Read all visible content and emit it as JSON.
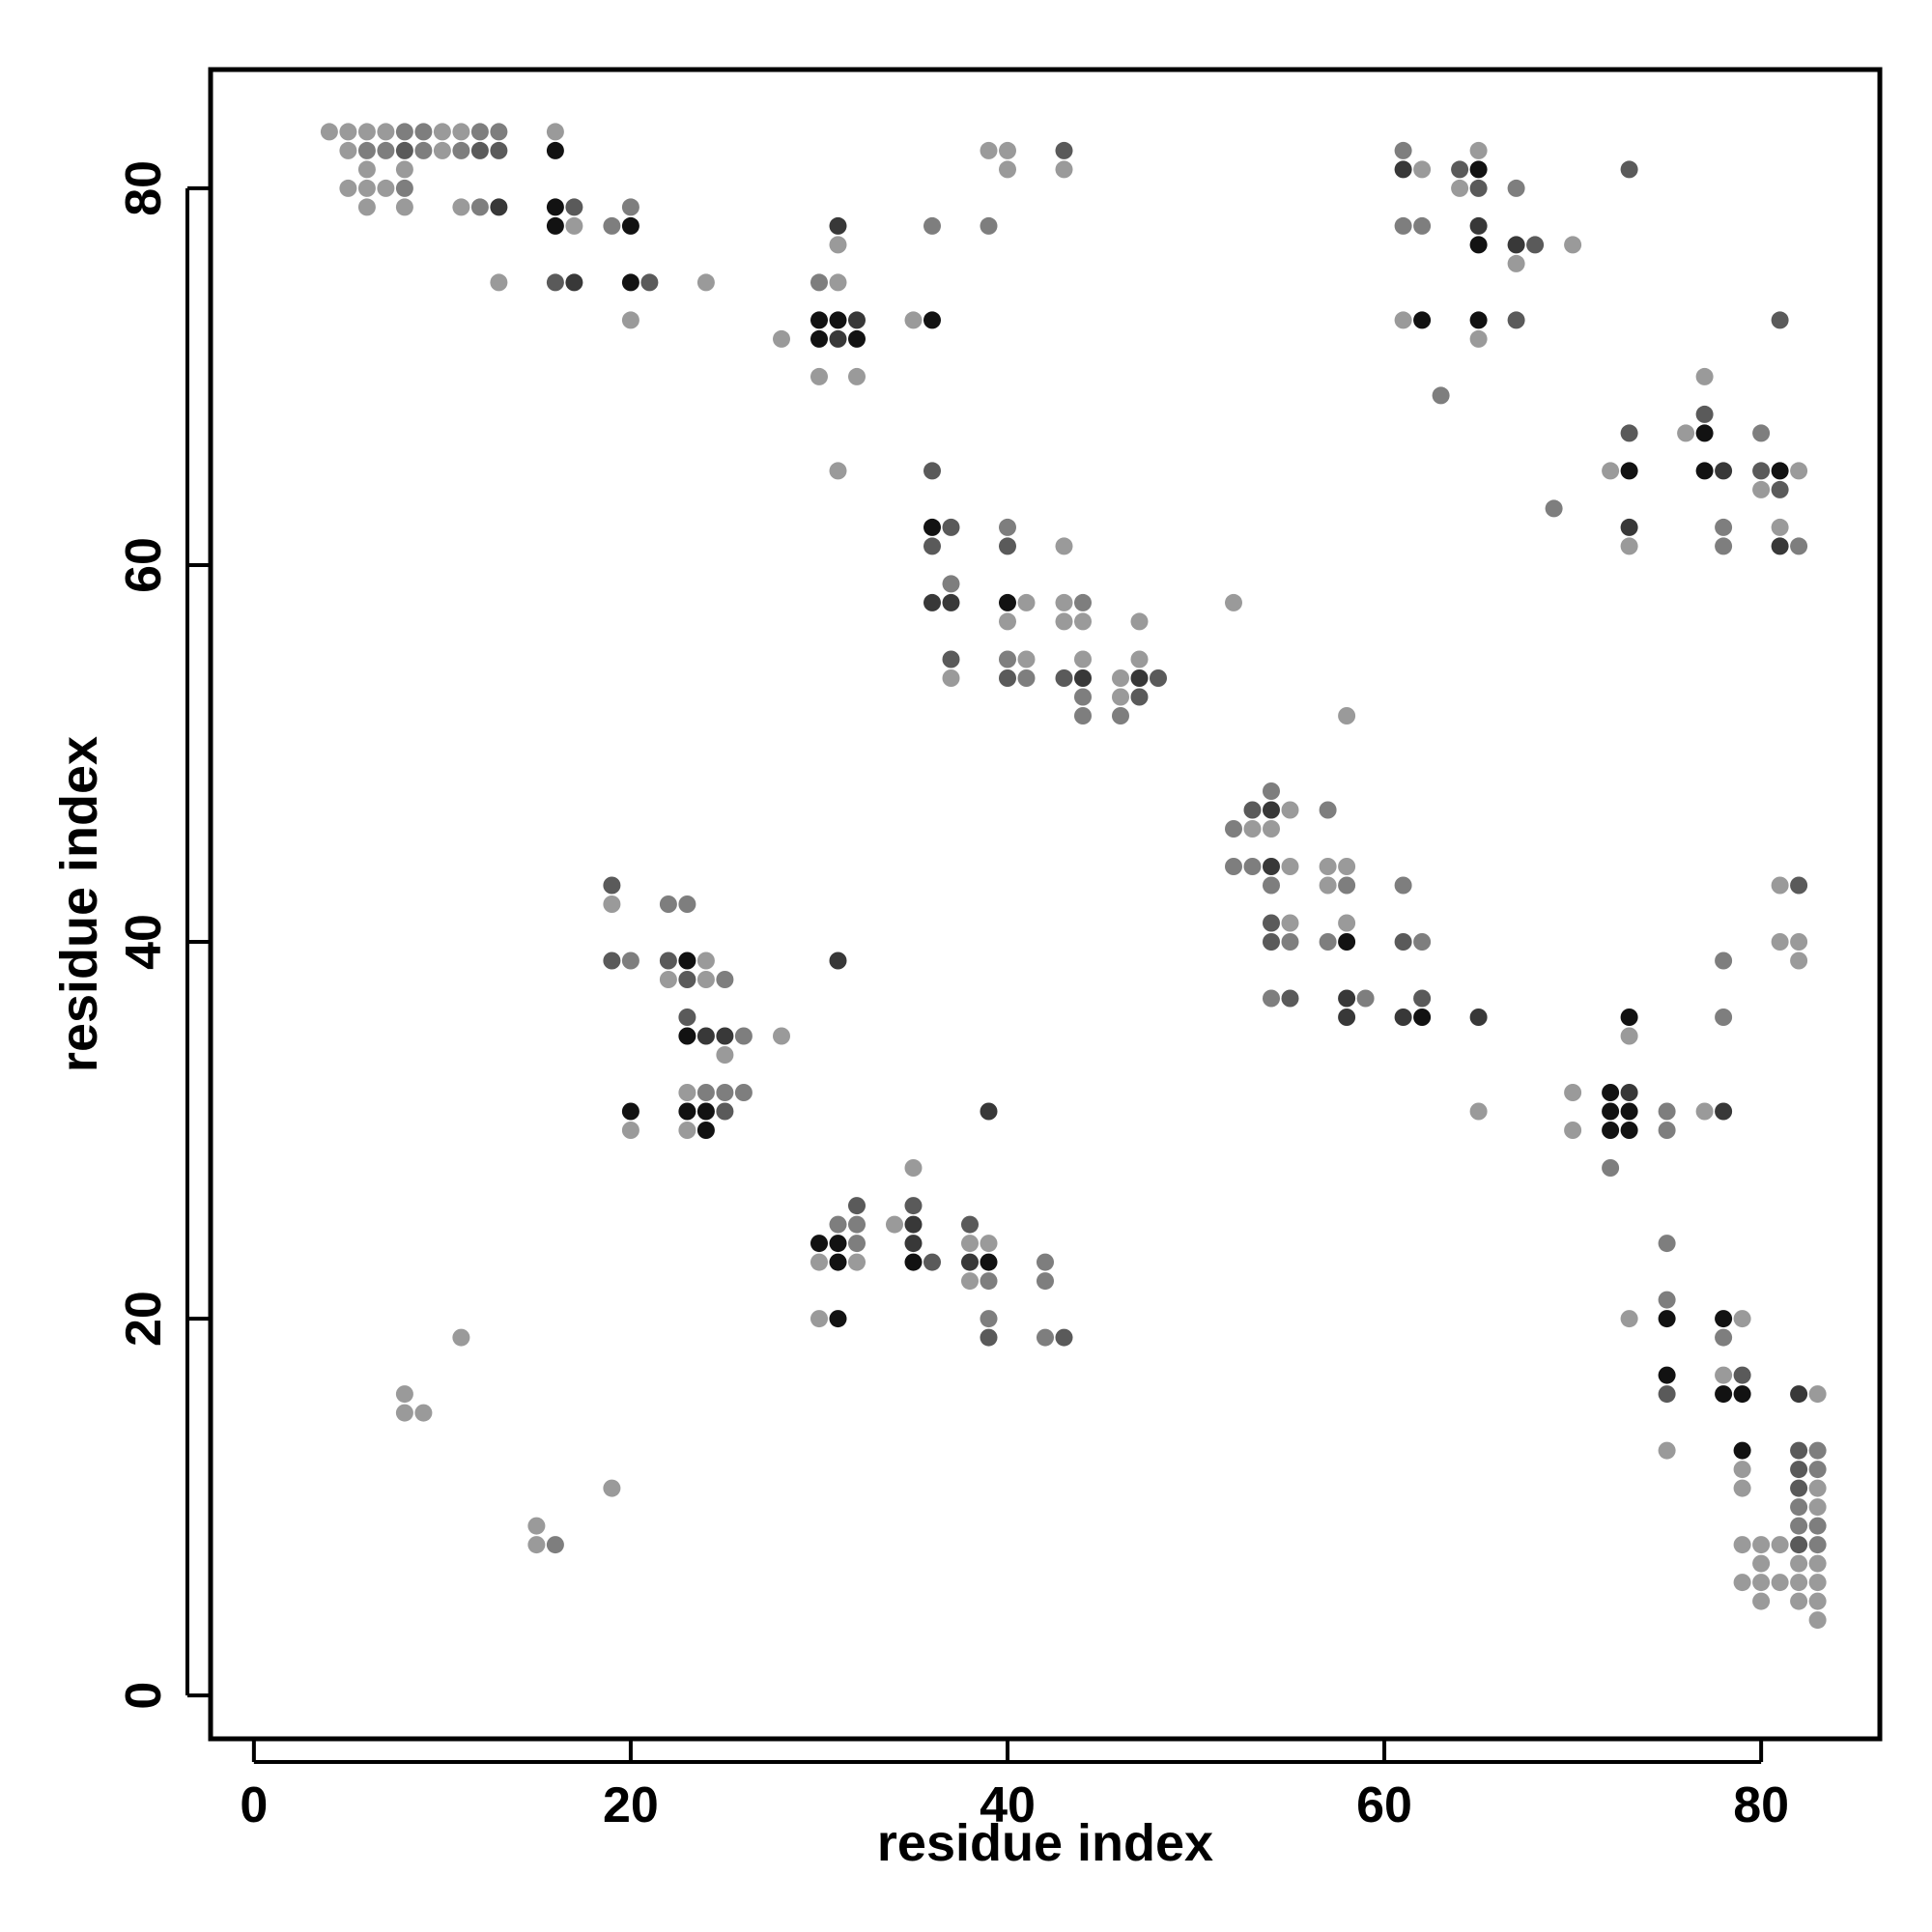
{
  "chart_data": {
    "type": "scatter",
    "title": "",
    "xlabel": "residue index",
    "ylabel": "residue index",
    "xlim": [
      -2.3,
      86.3
    ],
    "ylim": [
      -2.3,
      86.3
    ],
    "xticks": [
      "0",
      "20",
      "40",
      "60",
      "80"
    ],
    "yticks": [
      "0",
      "20",
      "40",
      "60",
      "80"
    ],
    "grid": false,
    "legend": "none",
    "shade_scale": {
      "1": "#9a9a9a",
      "2": "#7e7e7e",
      "3": "#5a5a5a",
      "4": "#383838",
      "5": "#121212"
    },
    "points": [
      [
        4,
        83,
        1
      ],
      [
        5,
        83,
        1
      ],
      [
        6,
        83,
        1
      ],
      [
        7,
        83,
        1
      ],
      [
        8,
        83,
        2
      ],
      [
        9,
        83,
        2
      ],
      [
        10,
        83,
        1
      ],
      [
        11,
        83,
        1
      ],
      [
        12,
        83,
        2
      ],
      [
        13,
        83,
        2
      ],
      [
        5,
        82,
        1
      ],
      [
        6,
        82,
        2
      ],
      [
        7,
        82,
        2
      ],
      [
        8,
        82,
        3
      ],
      [
        9,
        82,
        2
      ],
      [
        10,
        82,
        1
      ],
      [
        11,
        82,
        2
      ],
      [
        12,
        82,
        3
      ],
      [
        13,
        82,
        3
      ],
      [
        6,
        81,
        1
      ],
      [
        8,
        81,
        1
      ],
      [
        5,
        80,
        1
      ],
      [
        6,
        80,
        1
      ],
      [
        7,
        80,
        1
      ],
      [
        8,
        80,
        2
      ],
      [
        6,
        79,
        1
      ],
      [
        8,
        79,
        1
      ],
      [
        11,
        79,
        1
      ],
      [
        12,
        79,
        2
      ],
      [
        13,
        79,
        4
      ],
      [
        16,
        83,
        1
      ],
      [
        16,
        82,
        5
      ],
      [
        16,
        79,
        5
      ],
      [
        17,
        79,
        3
      ],
      [
        16,
        78,
        5
      ],
      [
        17,
        78,
        1
      ],
      [
        16,
        75,
        3
      ],
      [
        17,
        75,
        4
      ],
      [
        13,
        75,
        1
      ],
      [
        19,
        78,
        2
      ],
      [
        20,
        78,
        5
      ],
      [
        20,
        79,
        2
      ],
      [
        20,
        75,
        5
      ],
      [
        21,
        75,
        3
      ],
      [
        20,
        73,
        1
      ],
      [
        24,
        75,
        1
      ],
      [
        28,
        72,
        1
      ],
      [
        30,
        75,
        2
      ],
      [
        31,
        75,
        1
      ],
      [
        31,
        77,
        1
      ],
      [
        31,
        78,
        4
      ],
      [
        30,
        73,
        5
      ],
      [
        31,
        73,
        5
      ],
      [
        32,
        73,
        4
      ],
      [
        30,
        72,
        5
      ],
      [
        31,
        72,
        4
      ],
      [
        32,
        72,
        5
      ],
      [
        30,
        70,
        1
      ],
      [
        32,
        70,
        1
      ],
      [
        31,
        65,
        1
      ],
      [
        35,
        73,
        1
      ],
      [
        36,
        73,
        5
      ],
      [
        36,
        78,
        2
      ],
      [
        39,
        78,
        2
      ],
      [
        39,
        82,
        1
      ],
      [
        40,
        82,
        1
      ],
      [
        40,
        81,
        1
      ],
      [
        43,
        82,
        3
      ],
      [
        43,
        81,
        1
      ],
      [
        36,
        65,
        3
      ],
      [
        36,
        62,
        5
      ],
      [
        37,
        62,
        3
      ],
      [
        36,
        61,
        3
      ],
      [
        37,
        59,
        2
      ],
      [
        36,
        58,
        4
      ],
      [
        37,
        58,
        4
      ],
      [
        37,
        55,
        3
      ],
      [
        37,
        54,
        1
      ],
      [
        40,
        62,
        2
      ],
      [
        40,
        61,
        3
      ],
      [
        40,
        58,
        5
      ],
      [
        41,
        58,
        1
      ],
      [
        40,
        57,
        1
      ],
      [
        40,
        55,
        2
      ],
      [
        41,
        55,
        1
      ],
      [
        40,
        54,
        3
      ],
      [
        41,
        54,
        2
      ],
      [
        43,
        61,
        1
      ],
      [
        43,
        58,
        1
      ],
      [
        44,
        58,
        2
      ],
      [
        43,
        57,
        1
      ],
      [
        44,
        57,
        1
      ],
      [
        44,
        55,
        1
      ],
      [
        43,
        54,
        3
      ],
      [
        44,
        54,
        4
      ],
      [
        44,
        53,
        2
      ],
      [
        44,
        52,
        2
      ],
      [
        47,
        57,
        1
      ],
      [
        46,
        54,
        1
      ],
      [
        47,
        54,
        4
      ],
      [
        48,
        54,
        3
      ],
      [
        46,
        53,
        1
      ],
      [
        47,
        53,
        3
      ],
      [
        47,
        55,
        1
      ],
      [
        46,
        52,
        2
      ],
      [
        52,
        58,
        1
      ],
      [
        58,
        52,
        1
      ],
      [
        61,
        82,
        2
      ],
      [
        61,
        81,
        4
      ],
      [
        62,
        81,
        1
      ],
      [
        64,
        81,
        3
      ],
      [
        65,
        81,
        5
      ],
      [
        65,
        82,
        1
      ],
      [
        64,
        80,
        1
      ],
      [
        65,
        80,
        3
      ],
      [
        67,
        80,
        2
      ],
      [
        61,
        78,
        2
      ],
      [
        62,
        78,
        2
      ],
      [
        65,
        78,
        4
      ],
      [
        65,
        77,
        5
      ],
      [
        67,
        77,
        4
      ],
      [
        68,
        77,
        3
      ],
      [
        70,
        77,
        1
      ],
      [
        67,
        76,
        1
      ],
      [
        61,
        73,
        1
      ],
      [
        62,
        73,
        5
      ],
      [
        65,
        73,
        5
      ],
      [
        65,
        72,
        1
      ],
      [
        67,
        73,
        3
      ],
      [
        63,
        69,
        2
      ],
      [
        73,
        81,
        3
      ],
      [
        81,
        73,
        3
      ],
      [
        73,
        67,
        3
      ],
      [
        72,
        65,
        1
      ],
      [
        73,
        65,
        5
      ],
      [
        69,
        63,
        2
      ],
      [
        73,
        62,
        4
      ],
      [
        73,
        61,
        1
      ],
      [
        77,
        70,
        1
      ],
      [
        76,
        67,
        1
      ],
      [
        77,
        67,
        5
      ],
      [
        77,
        68,
        3
      ],
      [
        77,
        65,
        5
      ],
      [
        78,
        65,
        4
      ],
      [
        78,
        62,
        2
      ],
      [
        78,
        61,
        2
      ],
      [
        80,
        67,
        2
      ],
      [
        80,
        65,
        3
      ],
      [
        81,
        65,
        5
      ],
      [
        82,
        65,
        1
      ],
      [
        80,
        64,
        1
      ],
      [
        81,
        64,
        3
      ],
      [
        81,
        62,
        1
      ],
      [
        81,
        61,
        4
      ],
      [
        82,
        61,
        2
      ],
      [
        52,
        46,
        2
      ],
      [
        53,
        46,
        1
      ],
      [
        54,
        46,
        1
      ],
      [
        53,
        47,
        3
      ],
      [
        54,
        47,
        4
      ],
      [
        54,
        48,
        2
      ],
      [
        55,
        47,
        1
      ],
      [
        52,
        44,
        2
      ],
      [
        53,
        44,
        2
      ],
      [
        54,
        44,
        4
      ],
      [
        55,
        44,
        1
      ],
      [
        54,
        43,
        2
      ],
      [
        54,
        41,
        3
      ],
      [
        55,
        41,
        1
      ],
      [
        54,
        40,
        3
      ],
      [
        55,
        40,
        2
      ],
      [
        54,
        37,
        2
      ],
      [
        55,
        37,
        3
      ],
      [
        57,
        47,
        2
      ],
      [
        57,
        44,
        1
      ],
      [
        58,
        44,
        1
      ],
      [
        57,
        43,
        1
      ],
      [
        58,
        43,
        2
      ],
      [
        58,
        41,
        1
      ],
      [
        57,
        40,
        2
      ],
      [
        58,
        40,
        5
      ],
      [
        58,
        37,
        4
      ],
      [
        59,
        37,
        2
      ],
      [
        58,
        36,
        4
      ],
      [
        61,
        43,
        2
      ],
      [
        61,
        40,
        3
      ],
      [
        62,
        40,
        2
      ],
      [
        62,
        37,
        3
      ],
      [
        61,
        36,
        4
      ],
      [
        62,
        36,
        5
      ],
      [
        65,
        36,
        4
      ],
      [
        65,
        31,
        1
      ],
      [
        81,
        43,
        1
      ],
      [
        82,
        43,
        3
      ],
      [
        81,
        40,
        1
      ],
      [
        82,
        40,
        1
      ],
      [
        82,
        39,
        1
      ],
      [
        19,
        43,
        3
      ],
      [
        19,
        42,
        1
      ],
      [
        19,
        39,
        3
      ],
      [
        20,
        39,
        2
      ],
      [
        22,
        42,
        2
      ],
      [
        23,
        42,
        2
      ],
      [
        22,
        39,
        3
      ],
      [
        23,
        39,
        5
      ],
      [
        24,
        39,
        1
      ],
      [
        22,
        38,
        1
      ],
      [
        23,
        38,
        3
      ],
      [
        24,
        38,
        1
      ],
      [
        25,
        38,
        2
      ],
      [
        23,
        36,
        3
      ],
      [
        23,
        35,
        5
      ],
      [
        24,
        35,
        4
      ],
      [
        25,
        35,
        4
      ],
      [
        26,
        35,
        2
      ],
      [
        28,
        35,
        1
      ],
      [
        25,
        34,
        1
      ],
      [
        23,
        32,
        1
      ],
      [
        24,
        32,
        2
      ],
      [
        25,
        32,
        2
      ],
      [
        26,
        32,
        2
      ],
      [
        23,
        31,
        5
      ],
      [
        24,
        31,
        5
      ],
      [
        25,
        31,
        3
      ],
      [
        20,
        31,
        5
      ],
      [
        20,
        30,
        1
      ],
      [
        23,
        30,
        1
      ],
      [
        24,
        30,
        5
      ],
      [
        31,
        39,
        4
      ],
      [
        30,
        24,
        5
      ],
      [
        31,
        24,
        5
      ],
      [
        32,
        24,
        2
      ],
      [
        31,
        25,
        2
      ],
      [
        32,
        25,
        2
      ],
      [
        32,
        26,
        3
      ],
      [
        30,
        23,
        1
      ],
      [
        31,
        23,
        5
      ],
      [
        32,
        23,
        1
      ],
      [
        30,
        20,
        1
      ],
      [
        31,
        20,
        5
      ],
      [
        34,
        25,
        1
      ],
      [
        35,
        25,
        4
      ],
      [
        35,
        26,
        3
      ],
      [
        35,
        28,
        1
      ],
      [
        35,
        24,
        4
      ],
      [
        35,
        23,
        5
      ],
      [
        36,
        23,
        3
      ],
      [
        38,
        25,
        3
      ],
      [
        38,
        24,
        1
      ],
      [
        39,
        24,
        1
      ],
      [
        38,
        23,
        4
      ],
      [
        39,
        23,
        5
      ],
      [
        38,
        22,
        1
      ],
      [
        39,
        22,
        2
      ],
      [
        39,
        20,
        2
      ],
      [
        39,
        19,
        3
      ],
      [
        39,
        31,
        4
      ],
      [
        42,
        23,
        2
      ],
      [
        42,
        22,
        2
      ],
      [
        42,
        19,
        2
      ],
      [
        43,
        19,
        3
      ],
      [
        72,
        32,
        5
      ],
      [
        73,
        32,
        4
      ],
      [
        72,
        31,
        5
      ],
      [
        73,
        31,
        5
      ],
      [
        72,
        30,
        5
      ],
      [
        73,
        30,
        5
      ],
      [
        70,
        32,
        1
      ],
      [
        70,
        30,
        1
      ],
      [
        72,
        28,
        2
      ],
      [
        73,
        36,
        5
      ],
      [
        73,
        35,
        1
      ],
      [
        75,
        31,
        2
      ],
      [
        75,
        30,
        2
      ],
      [
        77,
        31,
        1
      ],
      [
        78,
        31,
        4
      ],
      [
        78,
        39,
        2
      ],
      [
        78,
        36,
        2
      ],
      [
        75,
        24,
        2
      ],
      [
        75,
        21,
        2
      ],
      [
        75,
        20,
        5
      ],
      [
        73,
        20,
        1
      ],
      [
        75,
        17,
        5
      ],
      [
        75,
        16,
        3
      ],
      [
        75,
        13,
        1
      ],
      [
        78,
        20,
        5
      ],
      [
        79,
        20,
        1
      ],
      [
        78,
        19,
        2
      ],
      [
        78,
        17,
        1
      ],
      [
        79,
        17,
        3
      ],
      [
        78,
        16,
        5
      ],
      [
        79,
        16,
        5
      ],
      [
        79,
        13,
        5
      ],
      [
        79,
        12,
        1
      ],
      [
        79,
        11,
        1
      ],
      [
        79,
        8,
        1
      ],
      [
        80,
        8,
        1
      ],
      [
        81,
        8,
        1
      ],
      [
        79,
        6,
        1
      ],
      [
        80,
        6,
        1
      ],
      [
        81,
        6,
        1
      ],
      [
        80,
        7,
        1
      ],
      [
        80,
        5,
        1
      ],
      [
        82,
        16,
        4
      ],
      [
        83,
        16,
        1
      ],
      [
        82,
        13,
        3
      ],
      [
        83,
        13,
        2
      ],
      [
        82,
        12,
        3
      ],
      [
        83,
        12,
        2
      ],
      [
        82,
        11,
        3
      ],
      [
        83,
        11,
        1
      ],
      [
        82,
        10,
        2
      ],
      [
        83,
        10,
        1
      ],
      [
        82,
        9,
        2
      ],
      [
        83,
        9,
        2
      ],
      [
        82,
        8,
        3
      ],
      [
        83,
        8,
        2
      ],
      [
        82,
        7,
        1
      ],
      [
        83,
        7,
        1
      ],
      [
        82,
        6,
        1
      ],
      [
        83,
        6,
        1
      ],
      [
        82,
        5,
        1
      ],
      [
        83,
        5,
        1
      ],
      [
        83,
        4,
        1
      ],
      [
        8,
        16,
        1
      ],
      [
        8,
        15,
        1
      ],
      [
        9,
        15,
        1
      ],
      [
        11,
        19,
        1
      ],
      [
        15,
        9,
        1
      ],
      [
        15,
        8,
        1
      ],
      [
        16,
        8,
        2
      ],
      [
        19,
        11,
        1
      ]
    ]
  }
}
